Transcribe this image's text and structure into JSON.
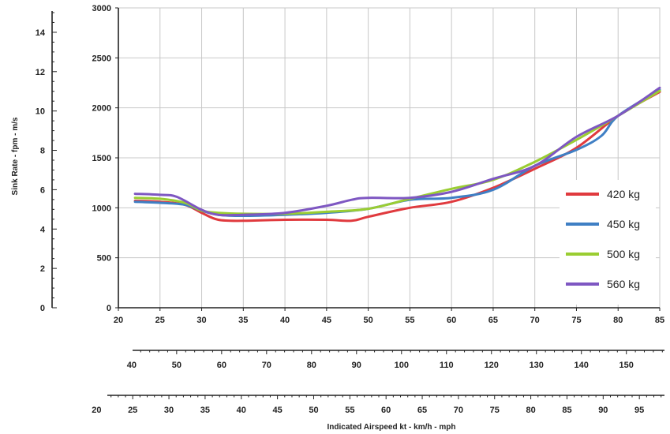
{
  "chart_data": {
    "type": "line",
    "xlabel": "Indicated Airspeed kt - km/h - mph",
    "ylabel": "Sink Rate - fpm - m/s",
    "x_primary": {
      "unit": "kt",
      "range": [
        20,
        85
      ],
      "ticks": [
        "20",
        "25",
        "30",
        "35",
        "40",
        "45",
        "50",
        "55",
        "60",
        "65",
        "70",
        "75",
        "80",
        "85"
      ]
    },
    "x_secondary": {
      "unit": "km/h",
      "ticks": [
        "40",
        "50",
        "60",
        "70",
        "80",
        "90",
        "100",
        "110",
        "120",
        "130",
        "140",
        "150"
      ]
    },
    "x_tertiary": {
      "unit": "mph",
      "ticks": [
        "20",
        "25",
        "30",
        "35",
        "40",
        "45",
        "50",
        "55",
        "60",
        "65",
        "70",
        "75",
        "80",
        "85",
        "90",
        "95"
      ]
    },
    "y_primary": {
      "unit": "fpm",
      "range": [
        0,
        3000
      ],
      "ticks": [
        "0",
        "500",
        "1000",
        "1500",
        "2000",
        "2500",
        "3000"
      ]
    },
    "y_secondary": {
      "unit": "m/s",
      "ticks": [
        "0",
        "2",
        "4",
        "6",
        "8",
        "10",
        "12",
        "14"
      ]
    },
    "grid": true,
    "legend_position": "right",
    "series": [
      {
        "name": "420 kg",
        "color": "#e03a3e",
        "x": [
          22,
          25,
          28,
          30,
          32,
          35,
          40,
          45,
          48,
          50,
          55,
          60,
          65,
          70,
          75,
          80,
          85
        ],
        "y": [
          1070,
          1060,
          1030,
          950,
          880,
          870,
          880,
          880,
          870,
          910,
          1000,
          1060,
          1200,
          1390,
          1600,
          1920,
          2160
        ]
      },
      {
        "name": "450 kg",
        "color": "#3f7fc4",
        "x": [
          22,
          25,
          28,
          30,
          32,
          35,
          40,
          45,
          50,
          55,
          60,
          65,
          70,
          75,
          78,
          80,
          85
        ],
        "y": [
          1060,
          1050,
          1030,
          970,
          930,
          920,
          930,
          950,
          990,
          1080,
          1100,
          1180,
          1420,
          1580,
          1720,
          1920,
          2180
        ]
      },
      {
        "name": "500 kg",
        "color": "#9acd32",
        "x": [
          22,
          25,
          28,
          30,
          32,
          35,
          40,
          45,
          50,
          55,
          60,
          65,
          70,
          75,
          80,
          85
        ],
        "y": [
          1100,
          1090,
          1050,
          970,
          950,
          940,
          940,
          960,
          990,
          1090,
          1190,
          1280,
          1460,
          1680,
          1920,
          2170
        ]
      },
      {
        "name": "560 kg",
        "color": "#7e57c2",
        "x": [
          22,
          25,
          27,
          30,
          32,
          35,
          40,
          45,
          48,
          50,
          55,
          60,
          65,
          70,
          75,
          80,
          85
        ],
        "y": [
          1140,
          1130,
          1110,
          980,
          930,
          930,
          950,
          1020,
          1080,
          1100,
          1100,
          1160,
          1290,
          1420,
          1710,
          1920,
          2200
        ]
      }
    ]
  }
}
